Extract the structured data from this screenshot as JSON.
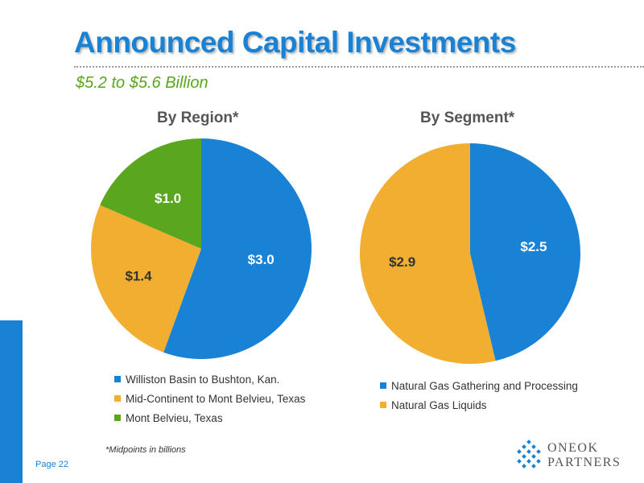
{
  "header": {
    "title": "Announced Capital Investments",
    "subtitle": "$5.2 to $5.6 Billion"
  },
  "colors": {
    "blue": "#1a82d4",
    "orange": "#f2ae30",
    "green": "#5aa61f",
    "accent": "#1a82d4"
  },
  "chart_data": [
    {
      "type": "pie",
      "title": "By Region*",
      "unit": "billions",
      "slices": [
        {
          "name": "Williston Basin to Bushton, Kan.",
          "value": 3.0,
          "label": "$3.0",
          "color": "#1a82d4",
          "label_color": "#ffffff"
        },
        {
          "name": "Mid-Continent to Mont Belvieu, Texas",
          "value": 1.4,
          "label": "$1.4",
          "color": "#f2ae30",
          "label_color": "#333333"
        },
        {
          "name": "Mont Belvieu, Texas",
          "value": 1.0,
          "label": "$1.0",
          "color": "#5aa61f",
          "label_color": "#ffffff"
        }
      ],
      "start": "12 o'clock",
      "direction": "clockwise",
      "legend_position": "bottom"
    },
    {
      "type": "pie",
      "title": "By Segment*",
      "unit": "billions",
      "slices": [
        {
          "name": "Natural Gas Gathering and Processing",
          "value": 2.5,
          "label": "$2.5",
          "color": "#1a82d4",
          "label_color": "#ffffff"
        },
        {
          "name": "Natural Gas Liquids",
          "value": 2.9,
          "label": "$2.9",
          "color": "#f2ae30",
          "label_color": "#333333"
        }
      ],
      "start": "12 o'clock",
      "direction": "clockwise",
      "legend_position": "bottom"
    }
  ],
  "footnote": "*Midpoints in billions",
  "page": "Page 22",
  "logo": {
    "line1": "ONEOK",
    "line2": "PARTNERS",
    "icon": "oneok-diamond-logo-icon"
  }
}
